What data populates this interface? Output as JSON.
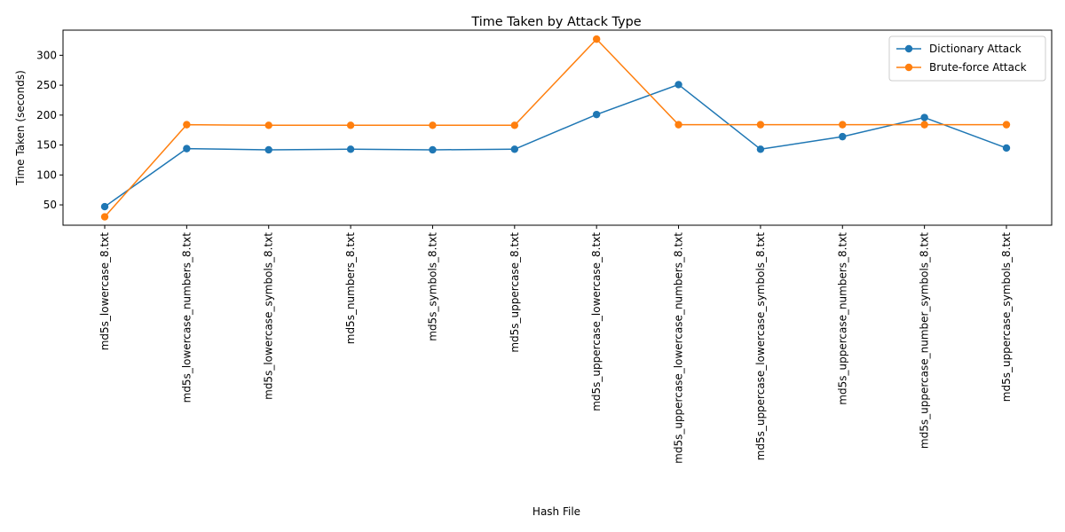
{
  "chart_data": {
    "type": "line",
    "title": "Time Taken by Attack Type",
    "xlabel": "Hash File",
    "ylabel": "Time Taken (seconds)",
    "categories": [
      "md5s_lowercase_8.txt",
      "md5s_lowercase_numbers_8.txt",
      "md5s_lowercase_symbols_8.txt",
      "md5s_numbers_8.txt",
      "md5s_symbols_8.txt",
      "md5s_uppercase_8.txt",
      "md5s_uppercase_lowercase_8.txt",
      "md5s_uppercase_lowercase_numbers_8.txt",
      "md5s_uppercase_lowercase_symbols_8.txt",
      "md5s_uppercase_numbers_8.txt",
      "md5s_uppercase_number_symbols_8.txt",
      "md5s_uppercase_symbols_8.txt"
    ],
    "series": [
      {
        "name": "Dictionary Attack",
        "color": "#1f77b4",
        "values": [
          47,
          144,
          142,
          143,
          142,
          143,
          201,
          251,
          143,
          164,
          196,
          145
        ]
      },
      {
        "name": "Brute-force Attack",
        "color": "#ff7f0e",
        "values": [
          30,
          184,
          183,
          183,
          183,
          183,
          327,
          184,
          184,
          184,
          184,
          184
        ]
      }
    ],
    "yticks": [
      50,
      100,
      150,
      200,
      250,
      300
    ],
    "ylim": [
      16,
      342
    ],
    "grid": false,
    "legend_position": "top-right"
  }
}
